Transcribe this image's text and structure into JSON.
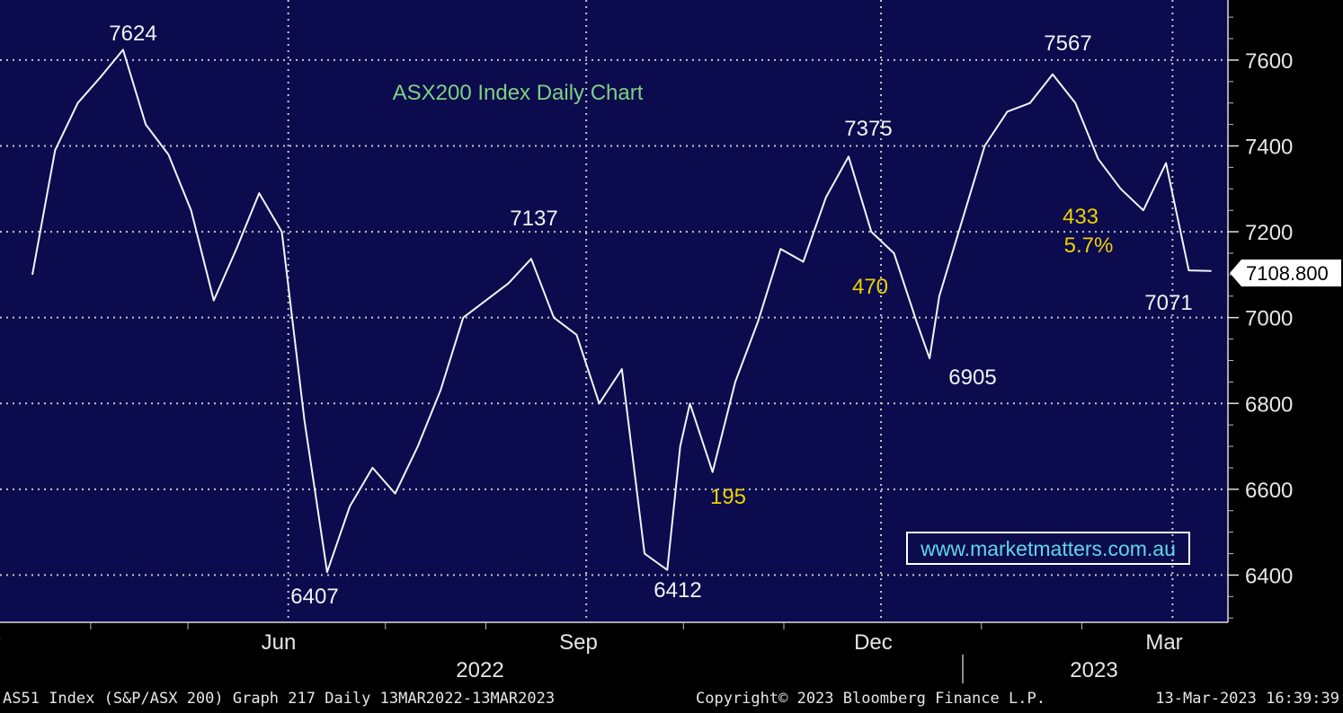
{
  "chart_data": {
    "type": "line",
    "title": "ASX200 Index Daily Chart",
    "y_ticks": [
      6400,
      6600,
      6800,
      7000,
      7200,
      7400,
      7600
    ],
    "ylim": [
      6290,
      7740
    ],
    "x_ticks": [
      "Mar",
      "Jun",
      "Sep",
      "Dec",
      "Mar"
    ],
    "years": [
      "2022",
      "2023"
    ],
    "last_price": "7108.800",
    "website": "www.marketmatters.com.au",
    "point_labels": [
      "7624",
      "7137",
      "7375",
      "7567",
      "6407",
      "6412",
      "6905",
      "7071"
    ],
    "move_labels": [
      "195",
      "470",
      "433",
      "5.7%"
    ],
    "series": [
      {
        "x": [
          "2022-03-14",
          "2022-03-21",
          "2022-03-28",
          "2022-04-04",
          "2022-04-11",
          "2022-04-18",
          "2022-04-25",
          "2022-05-02",
          "2022-05-09",
          "2022-05-16",
          "2022-05-23",
          "2022-05-30",
          "2022-06-06",
          "2022-06-13",
          "2022-06-20",
          "2022-06-27",
          "2022-07-04",
          "2022-07-11",
          "2022-07-18",
          "2022-07-25",
          "2022-08-01",
          "2022-08-08",
          "2022-08-15",
          "2022-08-22",
          "2022-08-29",
          "2022-09-05",
          "2022-09-12",
          "2022-09-19",
          "2022-09-26",
          "2022-09-30",
          "2022-10-03",
          "2022-10-10",
          "2022-10-17",
          "2022-10-24",
          "2022-10-31",
          "2022-11-07",
          "2022-11-14",
          "2022-11-21",
          "2022-11-28",
          "2022-12-05",
          "2022-12-12",
          "2022-12-16",
          "2022-12-19",
          "2022-12-23",
          "2023-01-02",
          "2023-01-09",
          "2023-01-16",
          "2023-01-23",
          "2023-01-30",
          "2023-02-06",
          "2023-02-13",
          "2023-02-20",
          "2023-02-27",
          "2023-03-06",
          "2023-03-13"
        ],
        "y": [
          7100,
          7390,
          7500,
          7560,
          7624,
          7450,
          7380,
          7250,
          7040,
          7160,
          7290,
          7200,
          6760,
          6407,
          6560,
          6650,
          6590,
          6700,
          6830,
          7000,
          7040,
          7080,
          7137,
          7000,
          6960,
          6800,
          6880,
          6450,
          6412,
          6700,
          6800,
          6640,
          6850,
          6990,
          7160,
          7130,
          7280,
          7375,
          7200,
          7150,
          6990,
          6905,
          7050,
          7150,
          7400,
          7480,
          7500,
          7567,
          7500,
          7370,
          7300,
          7250,
          7360,
          7110,
          7108.8
        ]
      }
    ]
  },
  "footer": {
    "left": "AS51 Index (S&P/ASX 200) Graph 217  Daily 13MAR2022-13MAR2023",
    "middle": "Copyright© 2023 Bloomberg Finance L.P.",
    "right": "13-Mar-2023 16:39:39"
  }
}
